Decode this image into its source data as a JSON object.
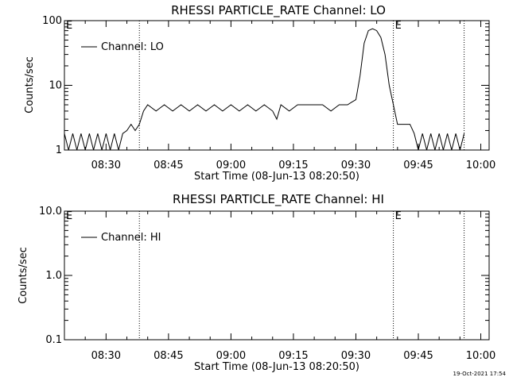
{
  "footer": {
    "timestamp": "19-Oct-2021 17:54"
  },
  "chart_data": [
    {
      "type": "line",
      "title": "RHESSI PARTICLE_RATE Channel: LO",
      "xlabel": "Start Time (08-Jun-13 08:20:50)",
      "ylabel": "Counts/sec",
      "yscale": "log",
      "ylim": [
        1,
        100
      ],
      "x_tick_labels": [
        "08:30",
        "08:45",
        "09:00",
        "09:15",
        "09:30",
        "09:45",
        "10:00"
      ],
      "y_tick_labels": [
        "1",
        "10",
        "100"
      ],
      "y_tick_values": [
        1,
        10,
        100
      ],
      "legend": {
        "entries": [
          "Channel: LO"
        ],
        "placement": "top-left"
      },
      "event_markers": [
        {
          "label": "E",
          "time": "08:20"
        },
        {
          "label": "",
          "time": "08:38"
        },
        {
          "label": "E",
          "time": "09:39"
        },
        {
          "label": "",
          "time": "09:56"
        }
      ],
      "xlim": [
        "08:20",
        "10:02"
      ],
      "series": [
        {
          "name": "Channel: LO",
          "x": [
            "08:20",
            "08:21",
            "08:22",
            "08:23",
            "08:24",
            "08:25",
            "08:26",
            "08:27",
            "08:28",
            "08:29",
            "08:30",
            "08:31",
            "08:32",
            "08:33",
            "08:34",
            "08:35",
            "08:36",
            "08:37",
            "08:38",
            "08:39",
            "08:40",
            "08:42",
            "08:44",
            "08:46",
            "08:48",
            "08:50",
            "08:52",
            "08:54",
            "08:56",
            "08:58",
            "09:00",
            "09:02",
            "09:04",
            "09:06",
            "09:08",
            "09:10",
            "09:11",
            "09:12",
            "09:14",
            "09:16",
            "09:18",
            "09:20",
            "09:22",
            "09:24",
            "09:26",
            "09:28",
            "09:29",
            "09:30",
            "09:31",
            "09:32",
            "09:33",
            "09:34",
            "09:35",
            "09:36",
            "09:37",
            "09:38",
            "09:39",
            "09:40",
            "09:41",
            "09:42",
            "09:43",
            "09:44",
            "09:45",
            "09:46",
            "09:47",
            "09:48",
            "09:49",
            "09:50",
            "09:51",
            "09:52",
            "09:53",
            "09:54",
            "09:55",
            "09:56"
          ],
          "y": [
            1.8,
            1,
            1.8,
            1,
            1.8,
            1,
            1.8,
            1,
            1.8,
            1,
            1.8,
            1,
            1.8,
            1,
            1.8,
            2,
            2.5,
            2,
            2.5,
            4,
            5,
            4,
            5,
            4,
            5,
            4,
            5,
            4,
            5,
            4,
            5,
            4,
            5,
            4,
            5,
            4,
            3,
            5,
            4,
            5,
            5,
            5,
            5,
            4,
            5,
            5,
            5.5,
            6,
            14,
            45,
            70,
            75,
            70,
            55,
            30,
            10,
            5,
            2.5,
            2.5,
            2.5,
            2.5,
            1.8,
            1,
            1.8,
            1,
            1.8,
            1,
            1.8,
            1,
            1.8,
            1,
            1.8,
            1,
            1.8
          ]
        }
      ]
    },
    {
      "type": "line",
      "title": "RHESSI PARTICLE_RATE Channel: HI",
      "xlabel": "Start Time (08-Jun-13 08:20:50)",
      "ylabel": "Counts/sec",
      "yscale": "log",
      "ylim": [
        0.1,
        10
      ],
      "x_tick_labels": [
        "08:30",
        "08:45",
        "09:00",
        "09:15",
        "09:30",
        "09:45",
        "10:00"
      ],
      "y_tick_labels": [
        "0.1",
        "1.0",
        "10.0"
      ],
      "y_tick_values": [
        0.1,
        1,
        10
      ],
      "legend": {
        "entries": [
          "Channel: HI"
        ],
        "placement": "top-left"
      },
      "event_markers": [
        {
          "label": "E",
          "time": "08:20"
        },
        {
          "label": "",
          "time": "08:38"
        },
        {
          "label": "E",
          "time": "09:39"
        },
        {
          "label": "",
          "time": "09:56"
        }
      ],
      "xlim": [
        "08:20",
        "10:02"
      ],
      "series": [
        {
          "name": "Channel: HI",
          "x": [],
          "y": []
        }
      ]
    }
  ]
}
